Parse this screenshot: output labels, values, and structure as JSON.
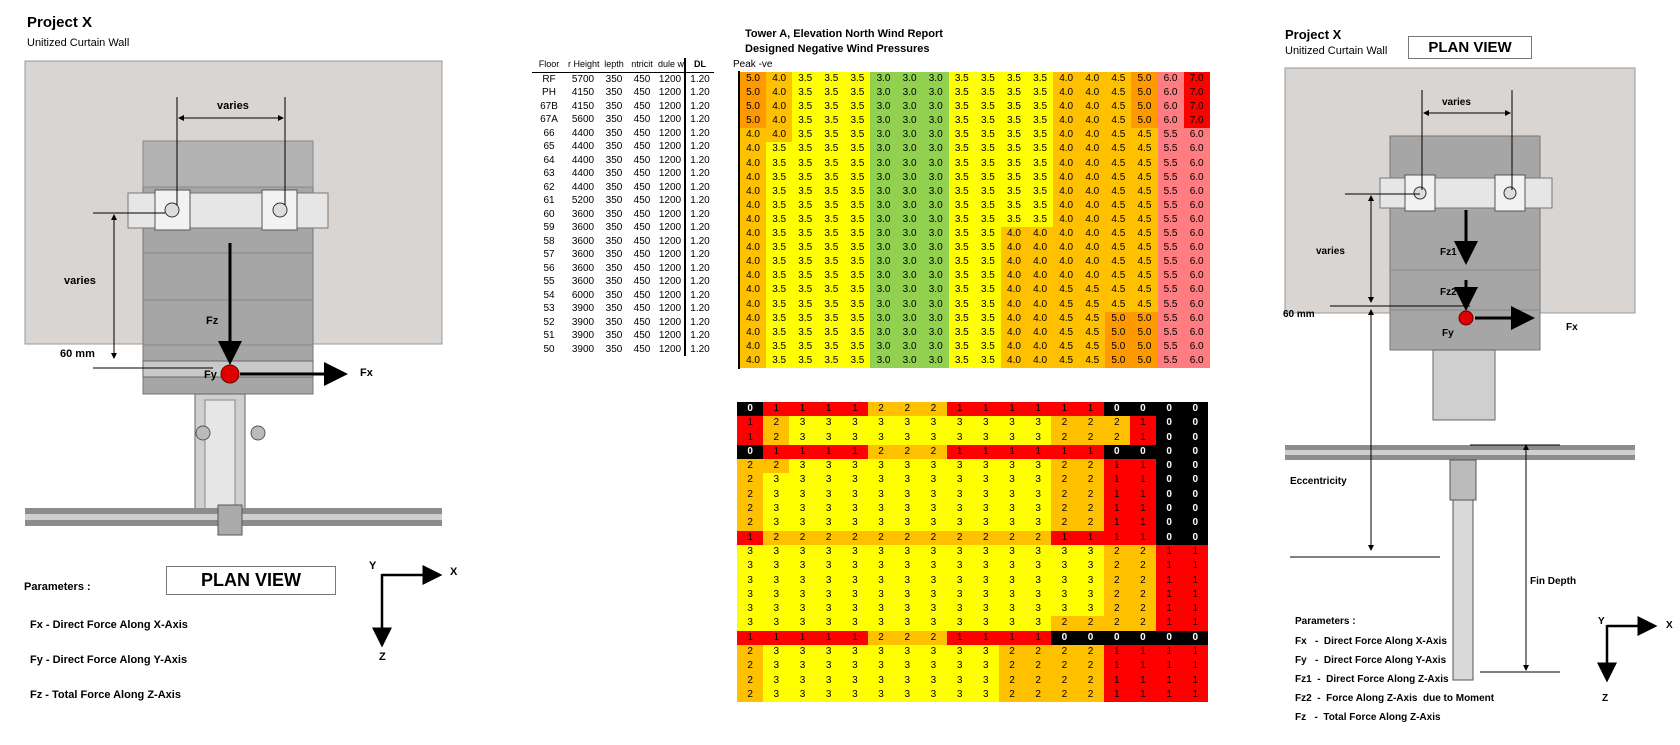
{
  "left_panel": {
    "project_title": "Project X",
    "project_subtitle": "Unitized Curtain Wall",
    "dim_varies_top": "varies",
    "dim_varies_side": "varies",
    "dim_60mm": "60 mm",
    "force_fz": "Fz",
    "force_fy": "Fy",
    "force_fx": "Fx",
    "plan_view_label": "PLAN VIEW",
    "parameters_title": "Parameters :",
    "parameters": [
      "Fx   -  Direct Force Along X-Axis",
      "Fy   -  Direct Force Along Y-Axis",
      "Fz   -  Total Force Along Z-Axis"
    ],
    "axis_y": "Y",
    "axis_x": "X",
    "axis_z": "Z"
  },
  "report": {
    "title_line1": "Tower A, Elevation North Wind Report",
    "title_line2": "Designed Negative Wind Pressures",
    "peak_label": "Peak -ve",
    "columns": [
      "Floor",
      "r Height",
      "lepth",
      "ntricit",
      "dule w",
      "DL"
    ],
    "rows": [
      [
        "RF",
        "5700",
        "350",
        "450",
        "1200",
        "1.20"
      ],
      [
        "PH",
        "4150",
        "350",
        "450",
        "1200",
        "1.20"
      ],
      [
        "67B",
        "4150",
        "350",
        "450",
        "1200",
        "1.20"
      ],
      [
        "67A",
        "5600",
        "350",
        "450",
        "1200",
        "1.20"
      ],
      [
        "66",
        "4400",
        "350",
        "450",
        "1200",
        "1.20"
      ],
      [
        "65",
        "4400",
        "350",
        "450",
        "1200",
        "1.20"
      ],
      [
        "64",
        "4400",
        "350",
        "450",
        "1200",
        "1.20"
      ],
      [
        "63",
        "4400",
        "350",
        "450",
        "1200",
        "1.20"
      ],
      [
        "62",
        "4400",
        "350",
        "450",
        "1200",
        "1.20"
      ],
      [
        "61",
        "5200",
        "350",
        "450",
        "1200",
        "1.20"
      ],
      [
        "60",
        "3600",
        "350",
        "450",
        "1200",
        "1.20"
      ],
      [
        "59",
        "3600",
        "350",
        "450",
        "1200",
        "1.20"
      ],
      [
        "58",
        "3600",
        "350",
        "450",
        "1200",
        "1.20"
      ],
      [
        "57",
        "3600",
        "350",
        "450",
        "1200",
        "1.20"
      ],
      [
        "56",
        "3600",
        "350",
        "450",
        "1200",
        "1.20"
      ],
      [
        "55",
        "3600",
        "350",
        "450",
        "1200",
        "1.20"
      ],
      [
        "54",
        "6000",
        "350",
        "450",
        "1200",
        "1.20"
      ],
      [
        "53",
        "3900",
        "350",
        "450",
        "1200",
        "1.20"
      ],
      [
        "52",
        "3900",
        "350",
        "450",
        "1200",
        "1.20"
      ],
      [
        "51",
        "3900",
        "350",
        "450",
        "1200",
        "1.20"
      ],
      [
        "50",
        "3900",
        "350",
        "450",
        "1200",
        "1.20"
      ]
    ],
    "pressure_grid": [
      "5.0 4.0 3.5 3.5 3.5 3.0 3.0 3.0 3.5 3.5 3.5 3.5 4.0 4.0 4.5 5.0 6.0 7.0",
      "5.0 4.0 3.5 3.5 3.5 3.0 3.0 3.0 3.5 3.5 3.5 3.5 4.0 4.0 4.5 5.0 6.0 7.0",
      "5.0 4.0 3.5 3.5 3.5 3.0 3.0 3.0 3.5 3.5 3.5 3.5 4.0 4.0 4.5 5.0 6.0 7.0",
      "5.0 4.0 3.5 3.5 3.5 3.0 3.0 3.0 3.5 3.5 3.5 3.5 4.0 4.0 4.5 5.0 6.0 7.0",
      "4.0 4.0 3.5 3.5 3.5 3.0 3.0 3.0 3.5 3.5 3.5 3.5 4.0 4.0 4.5 4.5 5.5 6.0",
      "4.0 3.5 3.5 3.5 3.5 3.0 3.0 3.0 3.5 3.5 3.5 3.5 4.0 4.0 4.5 4.5 5.5 6.0",
      "4.0 3.5 3.5 3.5 3.5 3.0 3.0 3.0 3.5 3.5 3.5 3.5 4.0 4.0 4.5 4.5 5.5 6.0",
      "4.0 3.5 3.5 3.5 3.5 3.0 3.0 3.0 3.5 3.5 3.5 3.5 4.0 4.0 4.5 4.5 5.5 6.0",
      "4.0 3.5 3.5 3.5 3.5 3.0 3.0 3.0 3.5 3.5 3.5 3.5 4.0 4.0 4.5 4.5 5.5 6.0",
      "4.0 3.5 3.5 3.5 3.5 3.0 3.0 3.0 3.5 3.5 3.5 3.5 4.0 4.0 4.5 4.5 5.5 6.0",
      "4.0 3.5 3.5 3.5 3.5 3.0 3.0 3.0 3.5 3.5 3.5 3.5 4.0 4.0 4.5 4.5 5.5 6.0",
      "4.0 3.5 3.5 3.5 3.5 3.0 3.0 3.0 3.5 3.5 4.0 4.0 4.0 4.0 4.5 4.5 5.5 6.0",
      "4.0 3.5 3.5 3.5 3.5 3.0 3.0 3.0 3.5 3.5 4.0 4.0 4.0 4.0 4.5 4.5 5.5 6.0",
      "4.0 3.5 3.5 3.5 3.5 3.0 3.0 3.0 3.5 3.5 4.0 4.0 4.0 4.0 4.5 4.5 5.5 6.0",
      "4.0 3.5 3.5 3.5 3.5 3.0 3.0 3.0 3.5 3.5 4.0 4.0 4.0 4.0 4.5 4.5 5.5 6.0",
      "4.0 3.5 3.5 3.5 3.5 3.0 3.0 3.0 3.5 3.5 4.0 4.0 4.5 4.5 4.5 4.5 5.5 6.0",
      "4.0 3.5 3.5 3.5 3.5 3.0 3.0 3.0 3.5 3.5 4.0 4.0 4.5 4.5 4.5 4.5 5.5 6.0",
      "4.0 3.5 3.5 3.5 3.5 3.0 3.0 3.0 3.5 3.5 4.0 4.0 4.5 4.5 5.0 5.0 5.5 6.0",
      "4.0 3.5 3.5 3.5 3.5 3.0 3.0 3.0 3.5 3.5 4.0 4.0 4.5 4.5 5.0 5.0 5.5 6.0",
      "4.0 3.5 3.5 3.5 3.5 3.0 3.0 3.0 3.5 3.5 4.0 4.0 4.5 4.5 5.0 5.0 5.5 6.0",
      "4.0 3.5 3.5 3.5 3.5 3.0 3.0 3.0 3.5 3.5 4.0 4.0 4.5 4.5 5.0 5.0 5.5 6.0"
    ],
    "pressure_colors": {
      "3.0": "#92d050",
      "3.5": "#ffff00",
      "4.0": "#ffc000",
      "4.5": "#ffc000",
      "5.0": "#ff9900",
      "5.5": "#ff7c80",
      "6.0": "#ff7c80",
      "7.0": "#ff0000"
    }
  },
  "code_grid": {
    "rows": [
      "0 1 1 1 1 2 2 2 1 1 1 1 1 1 0 0 0 0",
      "1 2 3 3 3 3 3 3 3 3 3 3 2 2 2 1 0 0",
      "1 2 3 3 3 3 3 3 3 3 3 3 2 2 2 1 0 0",
      "0 1 1 1 1 2 2 2 1 1 1 1 1 1 0 0 0 0",
      "2 2 3 3 3 3 3 3 3 3 3 3 2 2 1 1 0 0",
      "2 3 3 3 3 3 3 3 3 3 3 3 2 2 1 1 0 0",
      "2 3 3 3 3 3 3 3 3 3 3 3 2 2 1 1 0 0",
      "2 3 3 3 3 3 3 3 3 3 3 3 2 2 1 1 0 0",
      "2 3 3 3 3 3 3 3 3 3 3 3 2 2 1 1 0 0",
      "1 2 2 2 2 2 2 2 2 2 2 2 1 1 1 1 0 0",
      "3 3 3 3 3 3 3 3 3 3 3 3 3 3 2 2 1 1",
      "3 3 3 3 3 3 3 3 3 3 3 3 3 3 2 2 1 1",
      "3 3 3 3 3 3 3 3 3 3 3 3 3 3 2 2 1 1",
      "3 3 3 3 3 3 3 3 3 3 3 3 3 3 2 2 1 1",
      "3 3 3 3 3 3 3 3 3 3 3 3 3 3 2 2 1 1",
      "3 3 3 3 3 3 3 3 3 3 3 3 2 2 2 2 1 1",
      "1 1 1 1 1 2 2 2 1 1 1 1 0 0 0 0 0 0",
      "2 3 3 3 3 3 3 3 3 3 2 2 2 2 1 1 1 1",
      "2 3 3 3 3 3 3 3 3 3 2 2 2 2 1 1 1 1",
      "2 3 3 3 3 3 3 3 3 3 2 2 2 2 1 1 1 1",
      "2 3 3 3 3 3 3 3 3 3 2 2 2 2 1 1 1 1"
    ],
    "colors": {
      "0": "#000000",
      "1": "#ff0000",
      "2": "#ffc000",
      "3": "#ffff00"
    }
  },
  "right_panel": {
    "project_title": "Project X",
    "project_subtitle": "Unitized Curtain Wall",
    "plan_view_label": "PLAN VIEW",
    "dim_varies_top": "varies",
    "dim_varies_side": "varies",
    "dim_60mm": "60 mm",
    "force_fz1": "Fz1",
    "force_fz2": "Fz2",
    "force_fy": "Fy",
    "force_fx": "Fx",
    "eccentricity_label": "Eccentricity",
    "fin_depth_label": "Fin Depth",
    "parameters_title": "Parameters :",
    "parameters": [
      "Fx   -  Direct Force Along X-Axis",
      "Fy   -  Direct Force Along Y-Axis",
      "Fz1  -  Direct Force Along Z-Axis",
      "Fz2  -  Force Along Z-Axis  due to Moment",
      "Fz   -  Total Force Along Z-Axis"
    ],
    "axis_y": "Y",
    "axis_x": "X",
    "axis_z": "Z"
  }
}
